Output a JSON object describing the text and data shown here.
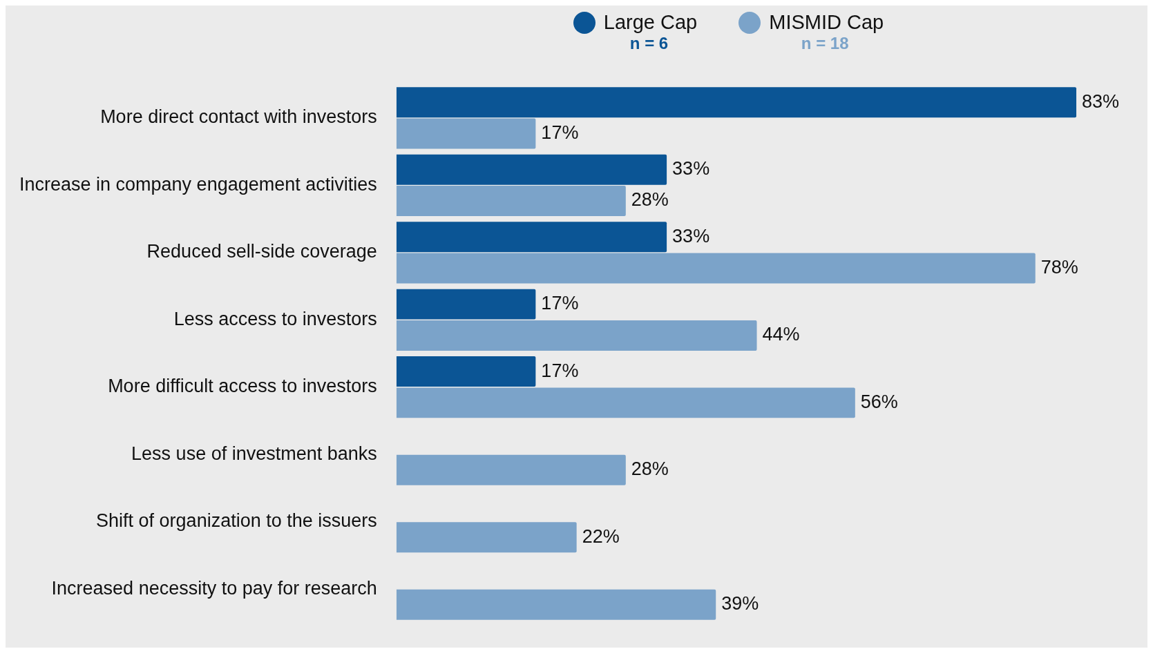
{
  "chart_data": {
    "type": "bar",
    "orientation": "horizontal",
    "categories": [
      "More direct contact with investors",
      "Increase in company engagement activities",
      "Reduced sell-side coverage",
      "Less access to investors",
      "More difficult access to investors",
      "Less use of investment banks",
      "Shift of organization to the issuers",
      "Increased necessity to pay for research"
    ],
    "series": [
      {
        "name": "Large Cap",
        "color": "#0b5595",
        "values": [
          83,
          33,
          33,
          17,
          17,
          null,
          null,
          null
        ],
        "value_labels": [
          "83%",
          "33%",
          "33%",
          "17%",
          "17%",
          null,
          null,
          null
        ]
      },
      {
        "name": "MISMID Cap",
        "color": "#7ba3c9",
        "values": [
          17,
          28,
          78,
          44,
          56,
          28,
          22,
          39
        ],
        "value_labels": [
          "17%",
          "28%",
          "78%",
          "44%",
          "56%",
          "28%",
          "22%",
          "39%"
        ]
      }
    ],
    "annotations": [
      "n = 6",
      "n = 18"
    ],
    "legend": "top"
  }
}
